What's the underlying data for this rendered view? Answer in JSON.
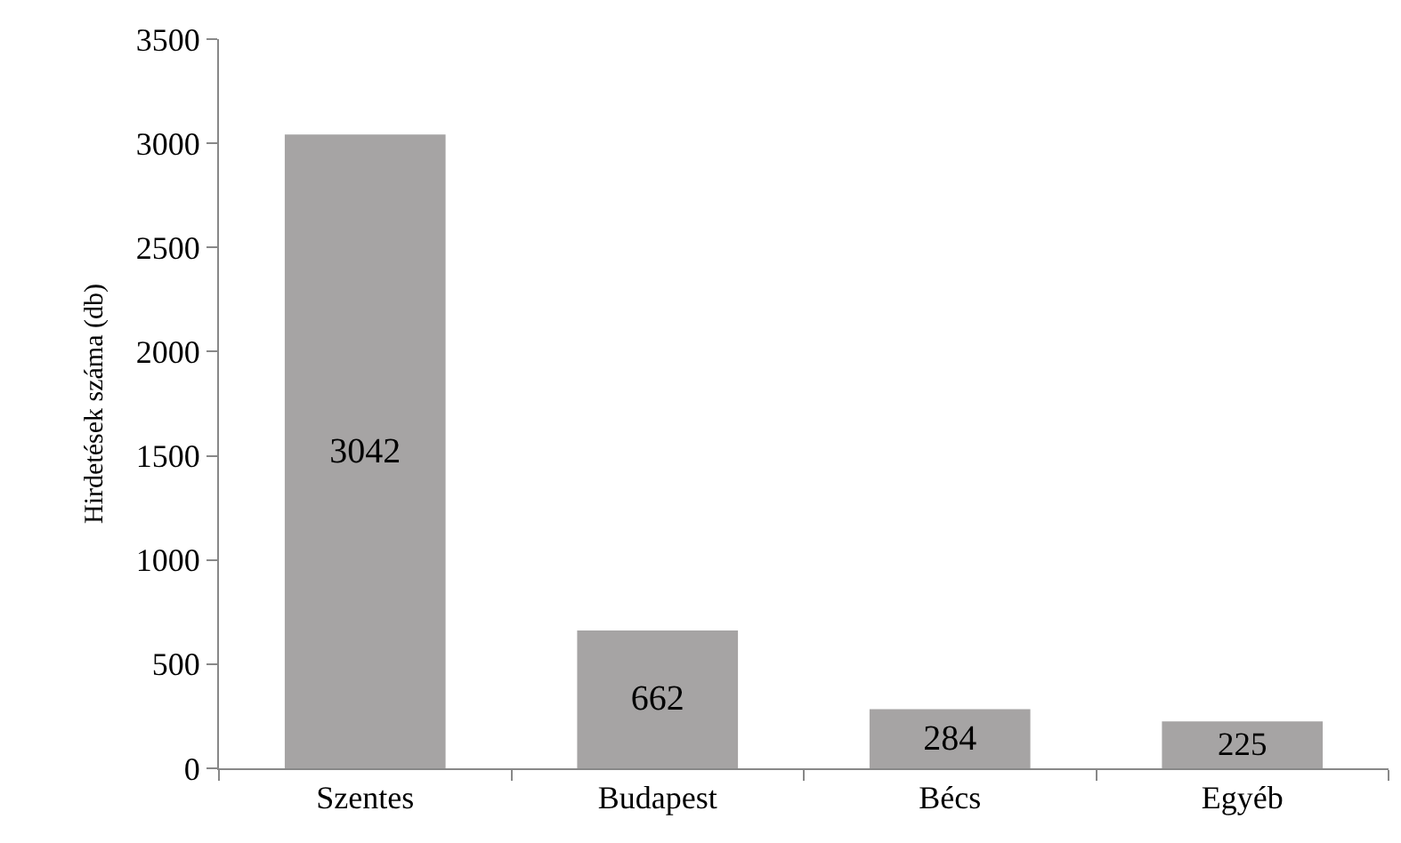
{
  "chart_data": {
    "type": "bar",
    "ylabel": "Hirdetések száma (db)",
    "categories": [
      "Szentes",
      "Budapest",
      "Bécs",
      "Egyéb"
    ],
    "values": [
      3042,
      662,
      284,
      225
    ],
    "color": "#a6a4a4",
    "ylim": [
      0,
      3500
    ],
    "yticks": [
      0,
      500,
      1000,
      1500,
      2000,
      2500,
      3000,
      3500
    ],
    "grid": false,
    "data_labels": true,
    "legend": false
  }
}
